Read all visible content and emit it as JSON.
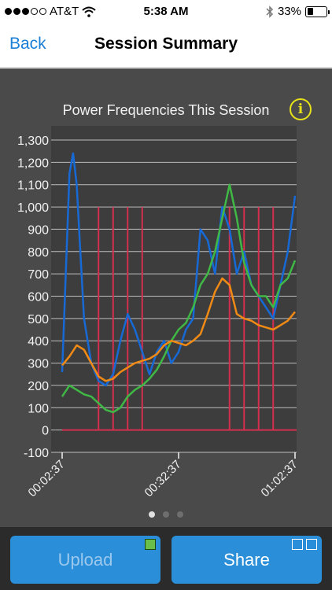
{
  "status": {
    "carrier": "AT&T",
    "time": "5:38 AM",
    "battery": "33%",
    "battery_level": 0.33,
    "signal_bars_filled": 3,
    "signal_bars_total": 5
  },
  "nav": {
    "back_label": "Back",
    "title": "Session Summary"
  },
  "chart_data": {
    "type": "line",
    "title": "Power Frequencies This Session",
    "ylim": [
      -100,
      1300
    ],
    "yticks": [
      "1,300",
      "1,200",
      "1,100",
      "1,000",
      "900",
      "800",
      "700",
      "600",
      "500",
      "400",
      "300",
      "200",
      "100",
      "0",
      "-100"
    ],
    "xticks": [
      "00:02:37",
      "00:32:37",
      "01:02:37"
    ],
    "x_range_min": [
      0,
      64
    ],
    "grid": true,
    "series": [
      {
        "color": "#1769d6",
        "x": [
          0,
          1,
          2,
          3,
          4,
          5,
          6,
          8,
          10,
          12,
          14,
          16,
          18,
          20,
          22,
          24,
          26,
          28,
          30,
          32,
          34,
          36,
          38,
          40,
          42,
          44,
          46,
          48,
          50,
          52,
          54,
          56,
          58,
          60,
          62,
          64
        ],
        "y": [
          260,
          700,
          1150,
          1240,
          1100,
          800,
          500,
          300,
          220,
          200,
          250,
          400,
          520,
          450,
          350,
          250,
          350,
          400,
          300,
          350,
          450,
          500,
          900,
          850,
          700,
          1000,
          900,
          700,
          800,
          650,
          600,
          550,
          500,
          650,
          800,
          1050
        ]
      },
      {
        "color": "#3fb845",
        "x": [
          0,
          2,
          4,
          6,
          8,
          10,
          12,
          14,
          16,
          18,
          20,
          22,
          24,
          26,
          28,
          30,
          32,
          34,
          36,
          38,
          40,
          42,
          44,
          46,
          48,
          50,
          52,
          54,
          56,
          58,
          60,
          62,
          64
        ],
        "y": [
          150,
          200,
          180,
          160,
          150,
          120,
          90,
          80,
          100,
          150,
          180,
          200,
          230,
          270,
          330,
          400,
          450,
          480,
          550,
          650,
          700,
          800,
          950,
          1100,
          950,
          750,
          650,
          600,
          600,
          550,
          650,
          680,
          760
        ]
      },
      {
        "color": "#f08a14",
        "x": [
          0,
          2,
          4,
          6,
          8,
          10,
          12,
          14,
          16,
          18,
          20,
          22,
          24,
          26,
          28,
          30,
          32,
          34,
          36,
          38,
          40,
          42,
          44,
          46,
          48,
          50,
          52,
          54,
          56,
          58,
          60,
          62,
          64
        ],
        "y": [
          290,
          330,
          380,
          360,
          300,
          240,
          220,
          230,
          260,
          280,
          300,
          310,
          320,
          340,
          380,
          400,
          390,
          380,
          400,
          430,
          520,
          620,
          680,
          650,
          520,
          500,
          490,
          470,
          460,
          450,
          470,
          490,
          530
        ]
      }
    ],
    "markers": {
      "color": "#d42f4f",
      "x": [
        10,
        14,
        18,
        22,
        46,
        50,
        54,
        58
      ],
      "top": 1000,
      "baseline": 0
    }
  },
  "pager": {
    "count": 3,
    "active": 0
  },
  "buttons": {
    "upload_label": "Upload",
    "share_label": "Share"
  },
  "colors": {
    "accent": "#2a8fd8",
    "chart_bg": "#4a4a4a",
    "info": "#e8e21a"
  }
}
